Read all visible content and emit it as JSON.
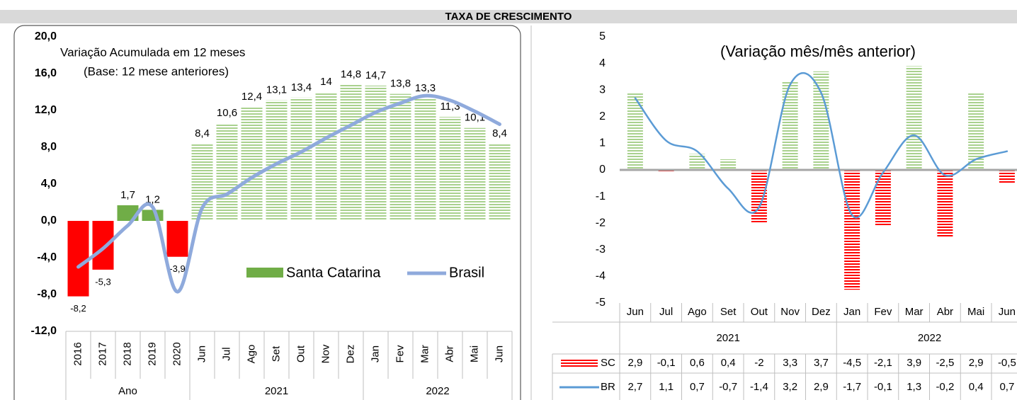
{
  "header": {
    "title": "TAXA DE CRESCIMENTO"
  },
  "chart_data": [
    {
      "type": "bar_line",
      "title": "Variação Acumulada em 12 meses",
      "subtitle": "(Base: 12 mese anteriores)",
      "category_groups": [
        {
          "label": "Ano",
          "categories": [
            "2016",
            "2017",
            "2018",
            "2019",
            "2020"
          ]
        },
        {
          "label": "2021",
          "categories": [
            "Jun",
            "Jul",
            "Ago",
            "Set",
            "Out",
            "Nov",
            "Dez"
          ]
        },
        {
          "label": "2022",
          "categories": [
            "Jan",
            "Fev",
            "Mar",
            "Abr",
            "Mai",
            "Jun"
          ]
        }
      ],
      "ylim": [
        -12,
        20
      ],
      "yticks": [
        {
          "value": 20,
          "label": "20,0"
        },
        {
          "value": 16,
          "label": "16,0"
        },
        {
          "value": 12,
          "label": "12,0"
        },
        {
          "value": 8,
          "label": "8,0"
        },
        {
          "value": 4,
          "label": "4,0"
        },
        {
          "value": 0,
          "label": "0,0"
        },
        {
          "value": -4,
          "label": "-4,0"
        },
        {
          "value": -8,
          "label": "-8,0"
        },
        {
          "value": -12,
          "label": "-12,0"
        }
      ],
      "legend": "bottom-right",
      "data_table": false,
      "series": [
        {
          "name": "Santa Catarina",
          "type": "bar",
          "color": "#70ad47",
          "negative_color": "#ff0000",
          "hatched": [
            false,
            false,
            false,
            false,
            false,
            true,
            true,
            true,
            true,
            true,
            true,
            true,
            true,
            true,
            true,
            true,
            true,
            true
          ],
          "values": [
            -8.2,
            -5.3,
            1.7,
            1.2,
            -3.9,
            8.4,
            10.6,
            12.4,
            13.1,
            13.4,
            14,
            14.8,
            14.7,
            13.8,
            13.3,
            11.3,
            10.1,
            8.4
          ],
          "value_labels": [
            "-8,2",
            "-5,3",
            "1,7",
            "1,2",
            "-3,9",
            "8,4",
            "10,6",
            "12,4",
            "13,1",
            "13,4",
            "14",
            "14,8",
            "14,7",
            "13,8",
            "13,3",
            "11,3",
            "10,1",
            "8,4"
          ]
        },
        {
          "name": "Brasil",
          "type": "line",
          "color": "#8faadc",
          "values": [
            -5.0,
            -3.0,
            -0.5,
            1.5,
            -7.7,
            1.4,
            2.9,
            4.7,
            6.2,
            7.5,
            9.0,
            10.4,
            11.8,
            12.8,
            13.6,
            13.1,
            11.9,
            10.5
          ]
        }
      ]
    },
    {
      "type": "bar_line",
      "title": "(Variação mês/mês anterior)",
      "category_groups": [
        {
          "label": "2021",
          "categories": [
            "Jun",
            "Jul",
            "Ago",
            "Set",
            "Out",
            "Nov",
            "Dez"
          ]
        },
        {
          "label": "2022",
          "categories": [
            "Jan",
            "Fev",
            "Mar",
            "Abr",
            "Mai",
            "Jun"
          ]
        }
      ],
      "ylim": [
        -5,
        5
      ],
      "yticks": [
        5,
        4,
        3,
        2,
        1,
        0,
        -1,
        -2,
        -3,
        -4,
        -5
      ],
      "data_table": true,
      "series": [
        {
          "name": "SC",
          "type": "bar",
          "color": "#a9d18e",
          "negative_color": "#ff0000",
          "hatched": [
            true,
            true,
            true,
            true,
            true,
            true,
            true,
            true,
            true,
            true,
            true,
            true,
            true
          ],
          "values": [
            2.9,
            -0.1,
            0.6,
            0.4,
            -2,
            3.3,
            3.7,
            -4.5,
            -2.1,
            3.9,
            -2.5,
            2.9,
            -0.5
          ],
          "value_labels": [
            "2,9",
            "-0,1",
            "0,6",
            "0,4",
            "-2",
            "3,3",
            "3,7",
            "-4,5",
            "-2,1",
            "3,9",
            "-2,5",
            "2,9",
            "-0,5"
          ]
        },
        {
          "name": "BR",
          "type": "line",
          "color": "#5b9bd5",
          "values": [
            2.7,
            1.1,
            0.7,
            -0.7,
            -1.4,
            3.2,
            2.9,
            -1.7,
            -0.1,
            1.3,
            -0.2,
            0.4,
            0.7
          ],
          "value_labels": [
            "2,7",
            "1,1",
            "0,7",
            "-0,7",
            "-1,4",
            "3,2",
            "2,9",
            "-1,7",
            "-0,1",
            "1,3",
            "-0,2",
            "0,4",
            "0,7"
          ]
        }
      ]
    }
  ]
}
